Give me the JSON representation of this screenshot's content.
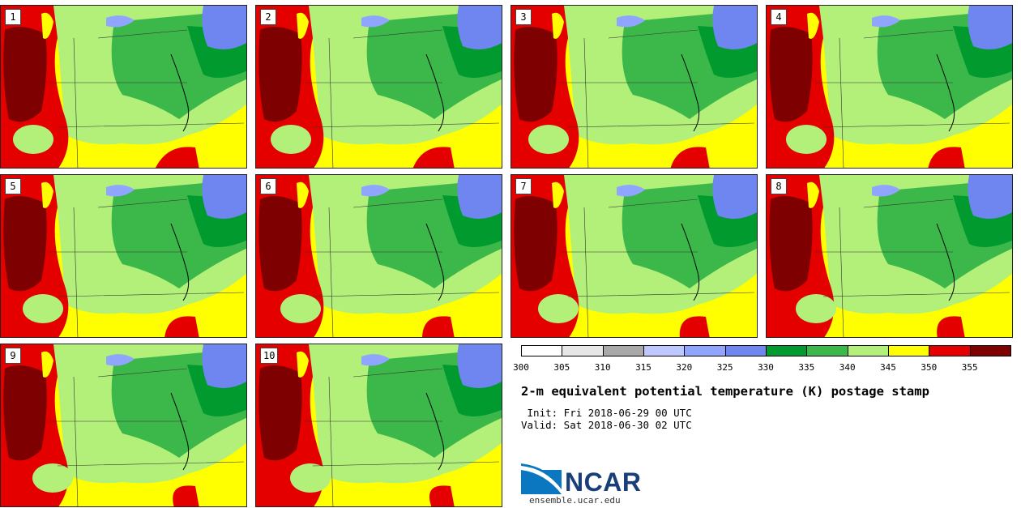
{
  "panels": [
    {
      "label": "1"
    },
    {
      "label": "2"
    },
    {
      "label": "3"
    },
    {
      "label": "4"
    },
    {
      "label": "5"
    },
    {
      "label": "6"
    },
    {
      "label": "7"
    },
    {
      "label": "8"
    },
    {
      "label": "9"
    },
    {
      "label": "10"
    }
  ],
  "colorbar": {
    "ticks": [
      "300",
      "305",
      "310",
      "315",
      "320",
      "325",
      "330",
      "335",
      "340",
      "345",
      "350",
      "355"
    ],
    "colors": [
      "#ffffff",
      "#e6e6e6",
      "#a8a8a8",
      "#bcc8ff",
      "#8fa5ff",
      "#6f86f0",
      "#009a2e",
      "#3cb84a",
      "#b2f07a",
      "#ffff00",
      "#e50000",
      "#7f0000"
    ]
  },
  "title": "2-m equivalent potential temperature (K) postage stamp",
  "init": " Init: Fri 2018-06-29 00 UTC",
  "valid": "Valid: Sat 2018-06-30 02 UTC",
  "logo": {
    "name": "NCAR",
    "url": "ensemble.ucar.edu"
  }
}
